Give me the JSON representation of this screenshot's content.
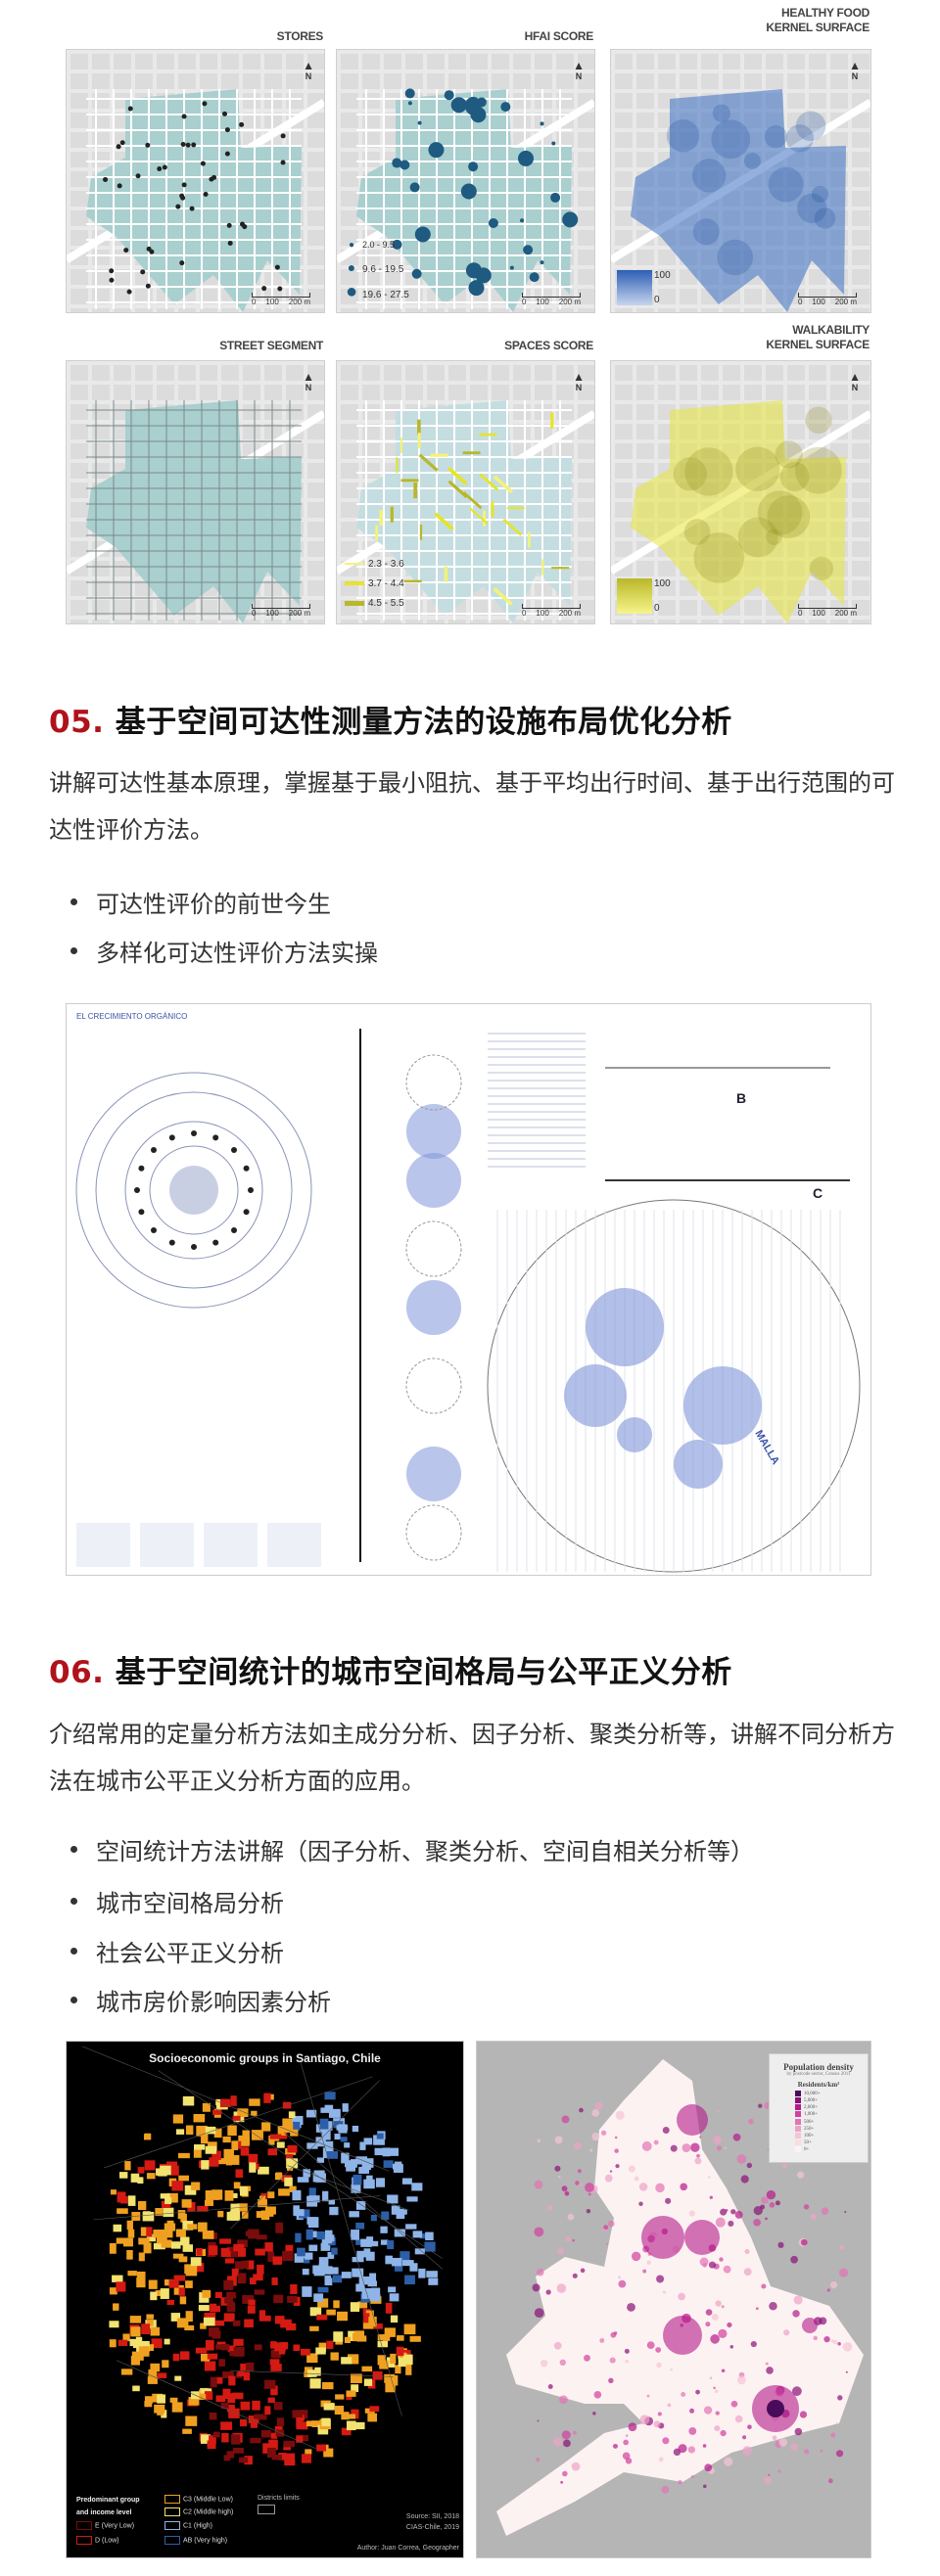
{
  "maps": {
    "row1": [
      {
        "title": "STORES",
        "type": "stores"
      },
      {
        "title": "HFAI SCORE",
        "type": "hfai",
        "legend": [
          "2.0 - 9.5",
          "9.6 - 19.5",
          "19.6 - 27.5"
        ]
      },
      {
        "title_line1": "HEALTHY FOOD",
        "title_line2": "KERNEL SURFACE",
        "type": "kernel",
        "legend_max": "100",
        "legend_min": "0",
        "color": "#3a6fc4"
      }
    ],
    "row2": [
      {
        "title": "STREET SEGMENT",
        "type": "streets"
      },
      {
        "title": "SPACES SCORE",
        "type": "spaces",
        "legend": [
          "2.3 - 3.6",
          "3.7 - 4.4",
          "4.5 - 5.5"
        ]
      },
      {
        "title_line1": "WALKABILITY",
        "title_line2": "KERNEL SURFACE",
        "type": "kernel",
        "legend_max": "100",
        "legend_min": "0",
        "color": "#e8e63a"
      }
    ],
    "scale": [
      "0",
      "100",
      "200 m"
    ],
    "north": "N",
    "block_color": "#a9cfcf",
    "point_color": "#1f5a80"
  },
  "section05": {
    "number": "05.",
    "title": "基于空间可达性测量方法的设施布局优化分析",
    "paragraph": "讲解可达性基本原理，掌握基于最小阻抗、基于平均出行时间、基于出行范围的可达性评价方法。",
    "bullets": [
      "可达性评价的前世今生",
      "多样化可达性评价方法实操"
    ],
    "poster": {
      "heading": "EL CRECIMIENTO ORGÁNICO",
      "label_b": "B",
      "label_c": "C",
      "label_malla": "MALLA",
      "accent": "#7f95d8"
    }
  },
  "section06": {
    "number": "06.",
    "title": "基于空间统计的城市空间格局与公平正义分析",
    "paragraph": "介绍常用的定量分析方法如主成分分析、因子分析、聚类分析等，讲解不同分析方法在城市公平正义分析方面的应用。",
    "bullets": [
      "空间统计方法讲解（因子分析、聚类分析、空间自相关分析等）",
      "城市空间格局分析",
      "社会公平正义分析",
      "城市房价影响因素分析"
    ],
    "santiago": {
      "title": "Socioeconomic groups in Santiago, Chile",
      "legend_title_1": "Predominant group",
      "legend_title_2": "and income level",
      "groups": [
        {
          "label": "E (Very Low)",
          "color": "#7a0c0c"
        },
        {
          "label": "D (Low)",
          "color": "#d41a12"
        },
        {
          "label": "C3 (Middle Low)",
          "color": "#f0a020"
        },
        {
          "label": "C2 (Middle high)",
          "color": "#f2e270"
        },
        {
          "label": "C1 (High)",
          "color": "#8fb4e8"
        },
        {
          "label": "AB (Very high)",
          "color": "#2d5fa8"
        }
      ],
      "districts": "Districts limits",
      "source_1": "Source: SII, 2018",
      "source_2": "CIAS-Chile, 2019",
      "author": "Author: Juan Correa, Geographer"
    },
    "density": {
      "title": "Population density",
      "subtitle": "by postcode sector, Census 2011",
      "unit": "Residents/km²",
      "classes": [
        "10,000+",
        "5,000+",
        "2,000+",
        "1,000+",
        "500+",
        "250+",
        "100+",
        "50+",
        "0+"
      ],
      "colors": [
        "#4a0c5a",
        "#8a0f76",
        "#b5198a",
        "#d0409e",
        "#e274b4",
        "#eea2c6",
        "#f5c5d5",
        "#f9dde3",
        "#fdf2f2"
      ]
    }
  }
}
